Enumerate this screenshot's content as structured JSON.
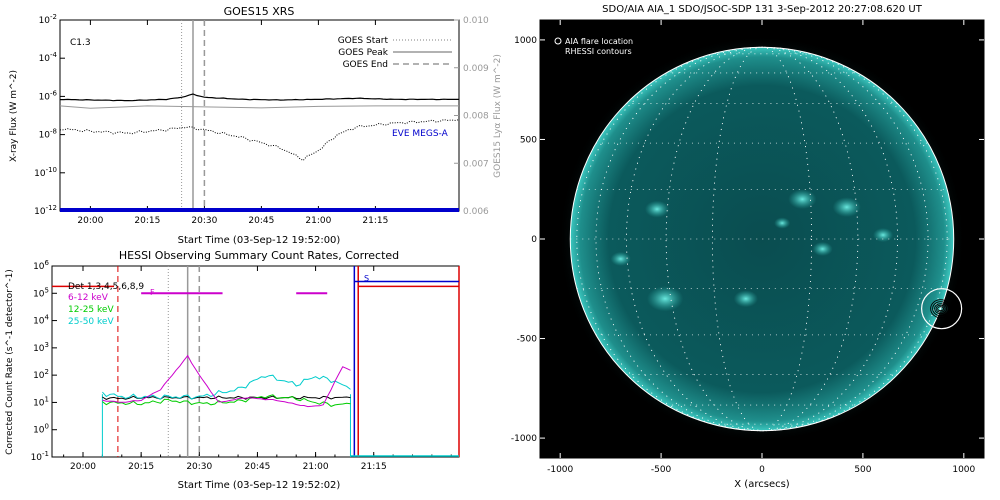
{
  "chart_data": [
    {
      "type": "line",
      "title": "GOES15 XRS",
      "xlabel": "Start Time (03-Sep-12 19:52:00)",
      "ylabel": "X-ray Flux (W m^-2)",
      "ylabel_right": "GOES15 Lyα Flux (W m^-2)",
      "x_range": [
        "19:52",
        "21:37"
      ],
      "x_ticks": [
        "20:00",
        "20:15",
        "20:30",
        "20:45",
        "21:00",
        "21:15"
      ],
      "ylim": [
        1e-12,
        0.01
      ],
      "y_scale": "log",
      "y_ticks": [
        "10^-12",
        "10^-10",
        "10^-8",
        "10^-6",
        "10^-4",
        "10^-2"
      ],
      "y2lim": [
        0.006,
        0.01
      ],
      "y2_ticks": [
        "0.006",
        "0.007",
        "0.008",
        "0.009",
        "0.010"
      ],
      "annotations": [
        "C1.3",
        "EVE MEGS-A"
      ],
      "legend": [
        {
          "label": "GOES Start",
          "style": "dotted"
        },
        {
          "label": "GOES Peak",
          "style": "solid"
        },
        {
          "label": "GOES End",
          "style": "dashed"
        }
      ],
      "legend_position": "top-right",
      "markers": {
        "start": "20:24",
        "peak": "20:27",
        "end": "20:30"
      },
      "series": [
        {
          "name": "",
          "color": "#000000",
          "style": "solid",
          "x": [
            "19:52",
            "20:00",
            "20:10",
            "20:20",
            "20:24",
            "20:27",
            "20:30",
            "20:40",
            "20:50",
            "21:00",
            "21:10",
            "21:20",
            "21:37"
          ],
          "values": [
            7e-07,
            6.5e-07,
            6e-07,
            7e-07,
            9e-07,
            1.3e-06,
            9e-07,
            7e-07,
            6.5e-07,
            7e-07,
            8e-07,
            7e-07,
            7e-07
          ]
        },
        {
          "name": "",
          "color": "#999999",
          "style": "solid",
          "x": [
            "19:52",
            "20:00",
            "20:15",
            "20:30",
            "20:45",
            "21:00",
            "21:15",
            "21:37"
          ],
          "values": [
            0.0082,
            0.00815,
            0.0082,
            0.00818,
            0.00816,
            0.00819,
            0.0082,
            0.0082
          ],
          "axis": "right"
        },
        {
          "name": "",
          "color": "#000000",
          "style": "dotted",
          "x": [
            "19:52",
            "20:00",
            "20:10",
            "20:20",
            "20:25",
            "20:30",
            "20:40",
            "20:50",
            "20:56",
            "21:00",
            "21:05",
            "21:10",
            "21:20",
            "21:37"
          ],
          "values": [
            2e-08,
            1.5e-08,
            1.2e-08,
            1.8e-08,
            2.5e-08,
            1.8e-08,
            7e-09,
            2e-09,
            5e-10,
            1.5e-09,
            1e-08,
            2.5e-08,
            4e-08,
            6e-08
          ]
        },
        {
          "name": "EVE MEGS-A",
          "color": "#0000cc",
          "style": "solid",
          "x": [
            "19:52",
            "21:37"
          ],
          "values": [
            1e-12,
            1e-12
          ]
        }
      ]
    },
    {
      "type": "line",
      "title": "HESSI Observing Summary Count Rates, Corrected",
      "xlabel": "Start Time (03-Sep-12 19:52:02)",
      "ylabel": "Corrected Count Rate (s^-1 detector^-1)",
      "x_range": [
        "19:52",
        "21:37"
      ],
      "x_ticks": [
        "20:00",
        "20:15",
        "20:30",
        "20:45",
        "21:00",
        "21:15"
      ],
      "ylim": [
        0.1,
        1000000.0
      ],
      "y_scale": "log",
      "y_ticks": [
        "10^-1",
        "10^0",
        "10^1",
        "10^2",
        "10^3",
        "10^4",
        "10^5",
        "10^6"
      ],
      "legend": [
        {
          "label": "Det 1,3,4,5,6,8,9",
          "color": "#000000"
        },
        {
          "label": "6-12 keV",
          "color": "#cc00cc"
        },
        {
          "label": "12-25 keV",
          "color": "#00cc00"
        },
        {
          "label": "25-50 keV",
          "color": "#00cccc"
        }
      ],
      "legend_position": "top-left",
      "flags": [
        {
          "label": "F",
          "color": "#cc00cc",
          "segments": [
            [
              "20:15",
              "20:36"
            ],
            [
              "20:55",
              "21:03"
            ]
          ]
        },
        {
          "label": "S",
          "color": "#0000cc",
          "segments": [
            [
              "21:11",
              "21:37"
            ]
          ]
        }
      ],
      "markers": {
        "red_dashed": "20:09",
        "grey_solid": "20:27",
        "grey_dashed": "20:30",
        "grey_dotted": "20:22",
        "blue": "21:10",
        "red_solid": [
          "21:11",
          "21:37"
        ]
      },
      "series": [
        {
          "name": "6-12 keV",
          "color": "#cc00cc",
          "x": [
            "20:05",
            "20:10",
            "20:15",
            "20:20",
            "20:24",
            "20:27",
            "20:30",
            "20:35",
            "20:42",
            "20:50",
            "20:58",
            "21:02",
            "21:05",
            "21:07",
            "21:09"
          ],
          "values": [
            12,
            10,
            12,
            30,
            150,
            500,
            100,
            10,
            15,
            12,
            7,
            8,
            60,
            200,
            150
          ]
        },
        {
          "name": "12-25 keV",
          "color": "#00cc00",
          "x": [
            "20:05",
            "20:15",
            "20:22",
            "20:27",
            "20:32",
            "20:40",
            "20:47",
            "20:55",
            "21:00",
            "21:05",
            "21:09"
          ],
          "values": [
            10,
            9,
            12,
            10,
            9,
            11,
            17,
            14,
            10,
            8,
            9
          ]
        },
        {
          "name": "25-50 keV",
          "color": "#00cccc",
          "x": [
            "20:05",
            "20:10",
            "20:15",
            "20:20",
            "20:30",
            "20:40",
            "20:47",
            "20:55",
            "21:00",
            "21:05",
            "21:09"
          ],
          "values": [
            22,
            16,
            16,
            16,
            16,
            30,
            100,
            45,
            90,
            60,
            30
          ]
        },
        {
          "name": "Det 1,3,4,5,6,8,9",
          "color": "#000000",
          "x": [
            "20:05",
            "20:09",
            "20:15",
            "20:25",
            "20:35",
            "20:45",
            "21:00",
            "21:09"
          ],
          "values": [
            15,
            14,
            15,
            15,
            15,
            15,
            15,
            15
          ]
        }
      ]
    },
    {
      "type": "heatmap",
      "title": "SDO/AIA AIA_1 SDO/JSOC-SDP 131   3-Sep-2012 20:27:08.620 UT",
      "xlabel": "X (arcsecs)",
      "ylabel": "",
      "xlim": [
        -1100,
        1100
      ],
      "ylim": [
        -1100,
        1100
      ],
      "x_ticks": [
        "-1000",
        "-500",
        "0",
        "500",
        "1000"
      ],
      "y_ticks": [
        "-1000",
        "-500",
        "0",
        "500",
        "1000"
      ],
      "solar_radius_arcsec": 950,
      "flare_location_arcsec": [
        890,
        -350
      ],
      "legend": [
        "AIA flare location",
        "RHESSI contours"
      ],
      "legend_position": "top-left",
      "colors": {
        "background": "#000000",
        "disk": "#0d5c5c",
        "bright": "#4fe0d8",
        "grid": "#ffffff"
      }
    }
  ]
}
